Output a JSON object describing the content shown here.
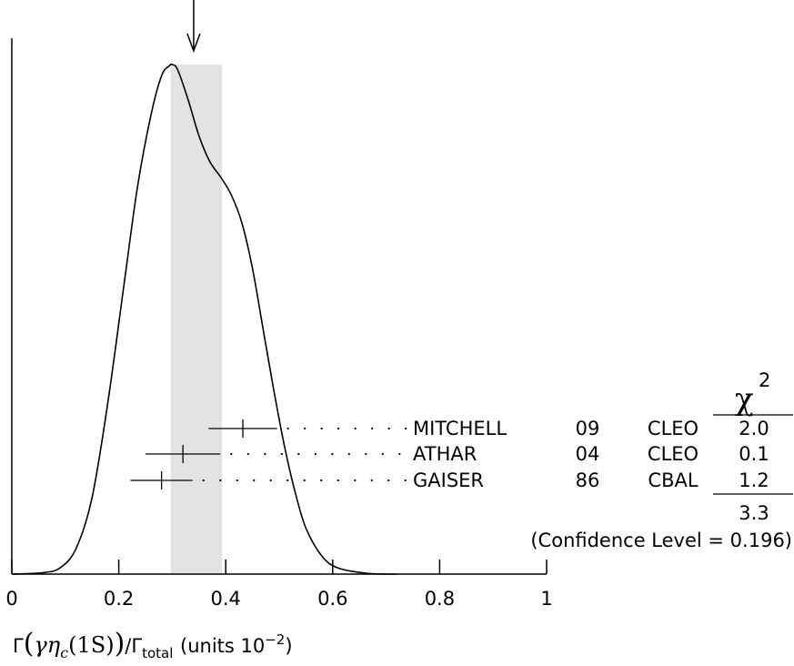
{
  "chart_data": {
    "type": "ideogram",
    "xlim": [
      0,
      1
    ],
    "x_ticks": [
      {
        "value": 0,
        "label": "0"
      },
      {
        "value": 0.2,
        "label": "0.2"
      },
      {
        "value": 0.4,
        "label": "0.4"
      },
      {
        "value": 0.6,
        "label": "0.6"
      },
      {
        "value": 0.8,
        "label": "0.8"
      },
      {
        "value": 1,
        "label": "1"
      }
    ],
    "xlabel_parts": {
      "gamma": "Γ",
      "open": "(",
      "greek_gamma": "γ",
      "eta": "η",
      "eta_sub": "c",
      "state": "(1S)",
      "close": ")",
      "over": "/Γ",
      "total_sub": "total",
      "units_text": "(units 10",
      "units_exp": "−2",
      "units_close": ")"
    },
    "average_value": 0.34,
    "average_band": [
      0.297,
      0.393
    ],
    "curve": [
      [
        0.0,
        0.0
      ],
      [
        0.03,
        0.001
      ],
      [
        0.06,
        0.003
      ],
      [
        0.09,
        0.012
      ],
      [
        0.12,
        0.05
      ],
      [
        0.15,
        0.15
      ],
      [
        0.18,
        0.34
      ],
      [
        0.21,
        0.57
      ],
      [
        0.235,
        0.76
      ],
      [
        0.26,
        0.9
      ],
      [
        0.28,
        0.978
      ],
      [
        0.295,
        0.998
      ],
      [
        0.3,
        1.0
      ],
      [
        0.31,
        0.99
      ],
      [
        0.33,
        0.93
      ],
      [
        0.35,
        0.86
      ],
      [
        0.37,
        0.81
      ],
      [
        0.39,
        0.78
      ],
      [
        0.41,
        0.745
      ],
      [
        0.43,
        0.69
      ],
      [
        0.45,
        0.6
      ],
      [
        0.47,
        0.48
      ],
      [
        0.49,
        0.36
      ],
      [
        0.51,
        0.25
      ],
      [
        0.53,
        0.16
      ],
      [
        0.55,
        0.09
      ],
      [
        0.58,
        0.035
      ],
      [
        0.61,
        0.012
      ],
      [
        0.66,
        0.002
      ],
      [
        0.7,
        0.0
      ]
    ],
    "measurements": [
      {
        "author": "MITCHELL",
        "year": "09",
        "experiment": "CLEO",
        "value": 0.432,
        "error_low": 0.064,
        "error_high": 0.064,
        "chi2": "2.0"
      },
      {
        "author": "ATHAR",
        "year": "04",
        "experiment": "CLEO",
        "value": 0.32,
        "error_low": 0.07,
        "error_high": 0.07,
        "chi2": "0.1"
      },
      {
        "author": "GAISER",
        "year": "86",
        "experiment": "CBAL",
        "value": 0.28,
        "error_low": 0.058,
        "error_high": 0.058,
        "chi2": "1.2"
      }
    ],
    "chi2_header": "χ",
    "chi2_header_exp": "2",
    "chi2_total": "3.3",
    "confidence_level_text": "(Confidence Level = 0.196)"
  }
}
